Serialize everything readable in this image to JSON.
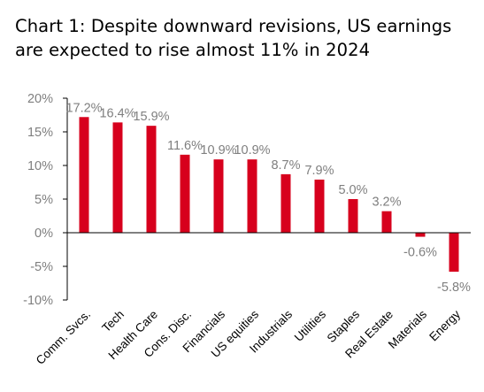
{
  "chart_data": {
    "type": "bar",
    "title": "Chart 1: Despite downward revisions, US earnings are expected to rise almost 11% in 2024",
    "categories": [
      "Comm. Svcs.",
      "Tech",
      "Health Care",
      "Cons. Disc.",
      "Financials",
      "US equities",
      "Industrials",
      "Utilities",
      "Staples",
      "Real Estate",
      "Materials",
      "Energy"
    ],
    "values": [
      17.2,
      16.4,
      15.9,
      11.6,
      10.9,
      10.9,
      8.7,
      7.9,
      5.0,
      3.2,
      -0.6,
      -5.8
    ],
    "data_labels": [
      "17.2%",
      "16.4%",
      "15.9%",
      "11.6%",
      "10.9%",
      "10.9%",
      "8.7%",
      "7.9%",
      "5.0%",
      "3.2%",
      "-0.6%",
      "-5.8%"
    ],
    "yticks": [
      20,
      15,
      10,
      5,
      0,
      -5,
      -10
    ],
    "ytick_labels": [
      "20%",
      "15%",
      "10%",
      "5%",
      "0%",
      "-5%",
      "-10%"
    ],
    "ylim": [
      -10,
      20
    ],
    "xlabel": "",
    "ylabel": "",
    "grid": false,
    "legend": "none",
    "bar_color": "#d7001d",
    "axis_color": "#000000",
    "label_color": "#7f7f7f"
  }
}
